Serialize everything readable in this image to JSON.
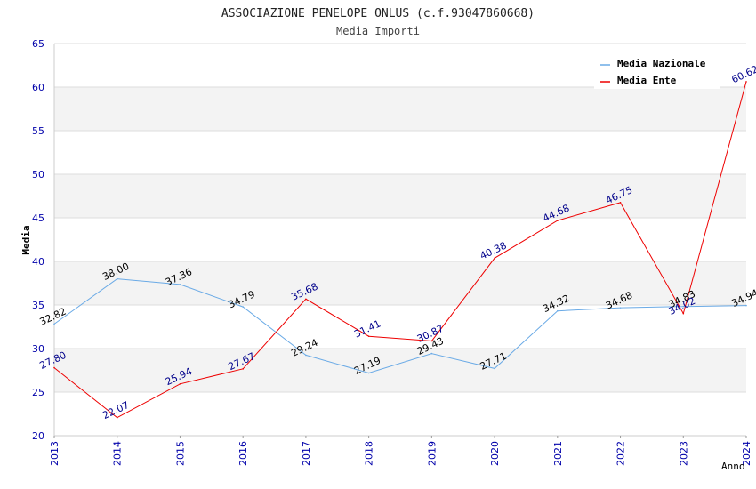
{
  "chart_data": {
    "type": "line",
    "title": "ASSOCIAZIONE PENELOPE ONLUS (c.f.93047860668)",
    "subtitle": "Media Importi",
    "xlabel": "Anno",
    "ylabel": "Media",
    "x": [
      "2013",
      "2014",
      "2015",
      "2016",
      "2017",
      "2018",
      "2019",
      "2020",
      "2021",
      "2022",
      "2023",
      "2024"
    ],
    "ylim": [
      20,
      65
    ],
    "yticks": [
      20,
      25,
      30,
      35,
      40,
      45,
      50,
      55,
      60,
      65
    ],
    "grid": true,
    "legend_position": "top-right",
    "series": [
      {
        "name": "Media Nazionale",
        "color": "#6aaae6",
        "label_color": "#000000",
        "values": [
          32.82,
          38.0,
          37.36,
          34.79,
          29.24,
          27.19,
          29.43,
          27.71,
          34.32,
          34.68,
          34.83,
          34.94
        ],
        "labels": [
          "32.82",
          "38.00",
          "37.36",
          "34.79",
          "29.24",
          "27.19",
          "29.43",
          "27.71",
          "34.32",
          "34.68",
          "34.83",
          "34.94"
        ]
      },
      {
        "name": "Media Ente",
        "color": "#ee0000",
        "label_color": "#00008b",
        "values": [
          27.8,
          22.07,
          25.94,
          27.67,
          35.68,
          31.41,
          30.87,
          40.38,
          44.68,
          46.75,
          34.02,
          60.62
        ],
        "labels": [
          "27.80",
          "22.07",
          "25.94",
          "27.67",
          "35.68",
          "31.41",
          "30.87",
          "40.38",
          "44.68",
          "46.75",
          "34.02",
          "60.62"
        ]
      }
    ]
  }
}
